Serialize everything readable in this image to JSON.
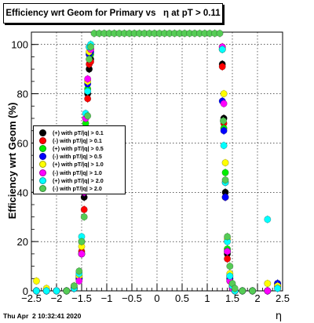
{
  "title": "Efficiency wrt Geom for Primary vs   η at pT > 0.11",
  "timestamp": "Thu Apr  2 10:32:41 2020",
  "chart_data": {
    "type": "scatter",
    "title": "Efficiency wrt Geom for Primary vs   η at pT > 0.11",
    "xlabel": "η",
    "ylabel": "Efficiency wrt Geom (%)",
    "xlim": [
      -2.5,
      2.5
    ],
    "ylim": [
      0,
      105
    ],
    "xticks": [
      "−2.5",
      "−2",
      "−1.5",
      "−1",
      "−0.5",
      "0",
      "0.5",
      "1",
      "1.5",
      "2",
      "2.5"
    ],
    "yticks": [
      "0",
      "20",
      "40",
      "60",
      "80",
      "100"
    ],
    "grid": true,
    "legend_position": "left",
    "series": [
      {
        "name": "(+) with pT/|q| > 0.1",
        "color": "#000000",
        "x": [
          -2.4,
          -2.2,
          -2.0,
          -1.8,
          -1.65,
          -1.55,
          -1.5,
          -1.45,
          -1.42,
          -1.38,
          -1.35,
          -1.32,
          1.3,
          1.33,
          1.36,
          1.4,
          1.45,
          1.5,
          1.55,
          1.7,
          1.9,
          2.2,
          2.4
        ],
        "y": [
          0,
          0,
          0,
          0,
          1,
          5,
          15,
          38,
          63,
          80,
          90,
          94,
          92,
          70,
          40,
          15,
          5,
          2,
          0,
          0,
          0,
          0,
          3
        ]
      },
      {
        "name": "(-) with pT/|q| > 0.1",
        "color": "#ff0000",
        "x": [
          -2.4,
          -2.2,
          -2.0,
          -1.8,
          -1.65,
          -1.55,
          -1.5,
          -1.45,
          -1.42,
          -1.38,
          -1.35,
          -1.32,
          1.3,
          1.33,
          1.36,
          1.4,
          1.45,
          1.5,
          1.55,
          1.7,
          1.9,
          2.2,
          2.4
        ],
        "y": [
          0,
          0,
          0,
          0,
          1,
          5,
          16,
          33,
          62,
          78,
          92,
          93,
          91,
          68,
          38,
          13,
          4,
          1,
          0,
          0,
          0,
          0,
          2
        ]
      },
      {
        "name": "(+) with pT/|q| > 0.5",
        "color": "#00ee00",
        "x": [
          -2.4,
          -2.2,
          -2.0,
          -1.8,
          -1.65,
          -1.55,
          -1.5,
          -1.45,
          -1.42,
          -1.38,
          -1.35,
          -1.32,
          1.3,
          1.33,
          1.36,
          1.4,
          1.45,
          1.5,
          1.55,
          1.7,
          1.9,
          2.2,
          2.4
        ],
        "y": [
          0,
          0,
          0,
          0,
          1,
          6,
          20,
          45,
          68,
          82,
          96,
          96,
          98,
          66,
          48,
          17,
          6,
          2,
          0,
          0,
          0,
          0,
          2
        ]
      },
      {
        "name": "(-) with pT/|q| > 0.5",
        "color": "#0000ff",
        "x": [
          -2.4,
          -2.2,
          -2.0,
          -1.8,
          -1.65,
          -1.55,
          -1.5,
          -1.45,
          -1.42,
          -1.38,
          -1.35,
          -1.32,
          1.3,
          1.33,
          1.36,
          1.4,
          1.45,
          1.5,
          1.55,
          1.7,
          1.9,
          2.2,
          2.4
        ],
        "y": [
          0,
          0,
          0,
          0,
          1,
          5,
          15,
          40,
          65,
          84,
          96,
          97,
          77,
          65,
          38,
          16,
          5,
          1,
          0,
          0,
          0,
          0,
          3
        ]
      },
      {
        "name": "(+) with pT/|q| > 1.0",
        "color": "#ffff00",
        "x": [
          -2.4,
          -2.2,
          -2.0,
          -1.8,
          -1.65,
          -1.55,
          -1.5,
          -1.45,
          -1.42,
          -1.38,
          -1.35,
          -1.32,
          1.3,
          1.33,
          1.36,
          1.4,
          1.45,
          1.5,
          1.55,
          1.7,
          1.9,
          2.2,
          2.4
        ],
        "y": [
          4,
          1,
          0,
          0,
          2,
          6,
          18,
          44,
          70,
          85,
          97,
          98,
          99,
          80,
          52,
          21,
          7,
          2,
          0,
          0,
          0,
          3,
          2
        ]
      },
      {
        "name": "(-) with pT/|q| > 1.0",
        "color": "#ff00ff",
        "x": [
          -2.4,
          -2.2,
          -2.0,
          -1.8,
          -1.65,
          -1.55,
          -1.5,
          -1.45,
          -1.42,
          -1.38,
          -1.35,
          -1.32,
          1.3,
          1.33,
          1.36,
          1.4,
          1.45,
          1.5,
          1.55,
          1.7,
          1.9,
          2.2,
          2.4
        ],
        "y": [
          0,
          0,
          0,
          0,
          1,
          4,
          15,
          40,
          70,
          86,
          99,
          98,
          99,
          76,
          44,
          16,
          4,
          1,
          0,
          0,
          0,
          0,
          1
        ]
      },
      {
        "name": "(+) with pT/|q| > 2.0",
        "color": "#00ffff",
        "x": [
          -2.4,
          -2.2,
          -2.0,
          -1.8,
          -1.65,
          -1.55,
          -1.5,
          -1.45,
          -1.42,
          -1.38,
          -1.35,
          -1.32,
          1.3,
          1.33,
          1.36,
          1.4,
          1.45,
          1.5,
          1.55,
          1.7,
          1.9,
          2.2,
          2.4
        ],
        "y": [
          0,
          0,
          0,
          0,
          1,
          7,
          22,
          48,
          72,
          81,
          99,
          100,
          98,
          59,
          44,
          20,
          6,
          2,
          0,
          0,
          0,
          29,
          1
        ]
      },
      {
        "name": "(-) with pT/|q| > 2.0",
        "color": "#55cc55",
        "x": [
          -1.8,
          -1.65,
          -1.55,
          -1.5,
          -1.45,
          -1.42,
          -1.38,
          -1.35,
          -1.32,
          -1.25,
          -1.15,
          -1.05,
          -0.95,
          -0.85,
          -0.75,
          -0.65,
          -0.55,
          -0.45,
          -0.35,
          -0.25,
          -0.15,
          -0.05,
          0.05,
          0.15,
          0.25,
          0.35,
          0.45,
          0.55,
          0.65,
          0.75,
          0.85,
          0.95,
          1.05,
          1.15,
          1.25,
          1.32,
          1.36,
          1.4,
          1.45,
          1.5,
          1.55,
          1.7,
          1.9
        ],
        "y": [
          0,
          2,
          8,
          20,
          30,
          50,
          71,
          94,
          99,
          105,
          105,
          105,
          105,
          105,
          105,
          105,
          105,
          105,
          105,
          105,
          105,
          105,
          105,
          105,
          105,
          105,
          105,
          105,
          105,
          105,
          105,
          105,
          105,
          105,
          105,
          69,
          45,
          22,
          10,
          3,
          1,
          0,
          0
        ]
      }
    ]
  }
}
